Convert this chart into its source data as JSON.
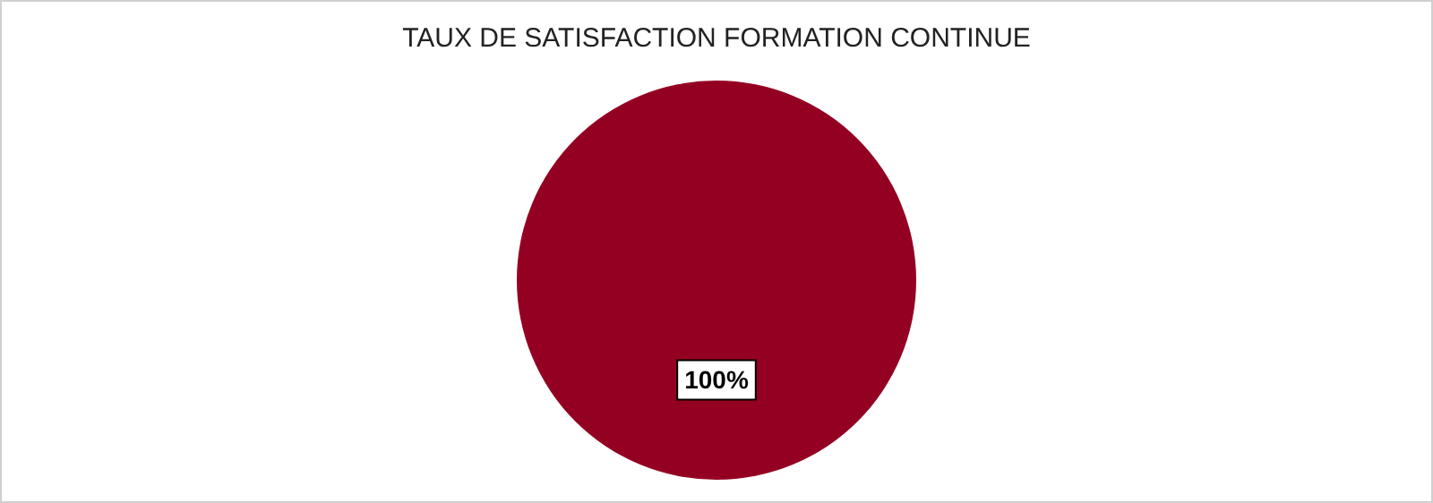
{
  "chart_data": {
    "type": "pie",
    "title": "TAUX DE SATISFACTION FORMATION CONTINUE",
    "categories": [
      null
    ],
    "values": [
      100
    ],
    "value_labels": [
      "100%"
    ],
    "colors": [
      "#940022"
    ],
    "legend": false
  }
}
